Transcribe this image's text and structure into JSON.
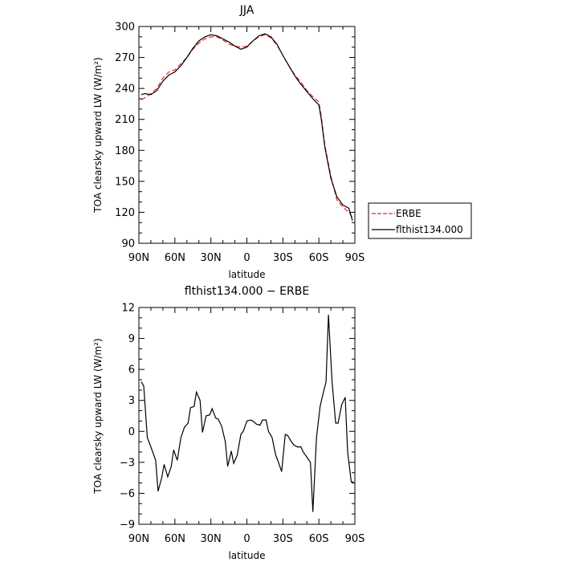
{
  "chart_data": [
    {
      "type": "line",
      "title": "JJA",
      "xlabel": "latitude",
      "ylabel": "TOA clearsky upward LW (W/m²)",
      "xlim": [
        90,
        -90
      ],
      "ylim": [
        90,
        300
      ],
      "x_tick_values": [
        90,
        60,
        30,
        0,
        -30,
        -60,
        -90
      ],
      "x_tick_labels": [
        "90N",
        "60N",
        "30N",
        "0",
        "30S",
        "60S",
        "90S"
      ],
      "y_ticks": [
        90,
        120,
        150,
        180,
        210,
        240,
        270,
        300
      ],
      "legend": {
        "placement": "outside-right-bottom"
      },
      "series": [
        {
          "name": "ERBE",
          "color": "#e8262a",
          "dash": "dashed",
          "x": [
            88,
            85,
            80,
            75,
            70,
            65,
            60,
            55,
            50,
            45,
            40,
            35,
            30,
            25,
            20,
            15,
            10,
            5,
            0,
            -5,
            -10,
            -15,
            -20,
            -25,
            -30,
            -35,
            -40,
            -45,
            -50,
            -55,
            -60,
            -62,
            -65,
            -70,
            -75,
            -80,
            -85,
            -88
          ],
          "y": [
            229,
            231,
            235,
            240,
            250,
            256,
            258,
            264,
            270,
            278,
            284,
            288,
            290,
            290,
            287,
            283,
            281,
            280,
            281,
            286,
            290,
            292,
            289,
            282,
            272,
            262,
            253,
            246,
            238,
            232,
            227,
            213,
            185,
            155,
            132,
            125,
            120,
            115
          ]
        },
        {
          "name": "flthist134.000",
          "color": "#000000",
          "dash": "solid",
          "x": [
            88,
            85,
            80,
            75,
            70,
            65,
            60,
            55,
            50,
            45,
            40,
            35,
            30,
            25,
            20,
            15,
            10,
            5,
            0,
            -5,
            -10,
            -15,
            -20,
            -25,
            -30,
            -35,
            -40,
            -45,
            -50,
            -55,
            -60,
            -62,
            -65,
            -70,
            -75,
            -80,
            -85,
            -88
          ],
          "y": [
            234,
            235,
            234,
            238,
            247,
            253,
            256,
            262,
            270,
            279,
            286,
            290,
            292,
            291,
            288,
            285,
            281,
            278,
            280,
            286,
            291,
            293,
            290,
            283,
            272,
            262,
            252,
            244,
            237,
            230,
            224,
            210,
            183,
            153,
            135,
            127,
            124,
            112
          ]
        }
      ]
    },
    {
      "type": "line",
      "title": "flthist134.000 − ERBE",
      "xlabel": "latitude",
      "ylabel": "TOA clearsky upward LW (W/m²)",
      "xlim": [
        90,
        -90
      ],
      "ylim": [
        -9,
        12
      ],
      "x_tick_values": [
        90,
        60,
        30,
        0,
        -30,
        -60,
        -90
      ],
      "x_tick_labels": [
        "90N",
        "60N",
        "30N",
        "0",
        "30S",
        "60S",
        "90S"
      ],
      "y_ticks": [
        -9,
        -6,
        -3,
        0,
        3,
        6,
        9,
        12
      ],
      "series": [
        {
          "color": "#000000",
          "dash": "solid",
          "x": [
            88,
            86,
            83,
            80,
            76,
            74,
            71,
            69,
            66,
            63,
            61,
            58,
            55,
            52,
            49,
            47,
            44,
            42,
            39,
            37,
            34,
            31,
            29,
            26,
            24,
            21,
            18,
            16,
            13,
            11,
            8,
            5,
            3,
            0,
            -3,
            -5,
            -8,
            -11,
            -13,
            -16,
            -18,
            -21,
            -24,
            -26,
            -29,
            -32,
            -34,
            -37,
            -39,
            -42,
            -45,
            -47,
            -50,
            -53,
            -55,
            -58,
            -61,
            -63,
            -66,
            -68,
            -71,
            -74,
            -76,
            -79,
            -82,
            -84,
            -87,
            -89
          ],
          "y": [
            4.8,
            4.4,
            -0.6,
            -1.5,
            -2.8,
            -5.8,
            -4.5,
            -3.2,
            -4.4,
            -3.4,
            -1.8,
            -2.8,
            -0.6,
            0.4,
            0.8,
            2.3,
            2.4,
            3.8,
            3.0,
            -0.1,
            1.5,
            1.6,
            2.2,
            1.3,
            1.2,
            0.5,
            -1.0,
            -3.4,
            -1.9,
            -3.1,
            -2.3,
            -0.3,
            0.0,
            1.0,
            1.1,
            1.0,
            0.7,
            0.6,
            1.1,
            1.1,
            0.0,
            -0.6,
            -2.3,
            -2.9,
            -3.9,
            -0.3,
            -0.4,
            -1.0,
            -1.3,
            -1.5,
            -1.5,
            -2.0,
            -2.5,
            -3.0,
            -7.8,
            -0.6,
            2.4,
            3.4,
            4.8,
            11.3,
            4.8,
            0.8,
            0.8,
            2.6,
            3.3,
            -2.0,
            -4.9,
            -4.9
          ]
        }
      ]
    }
  ]
}
